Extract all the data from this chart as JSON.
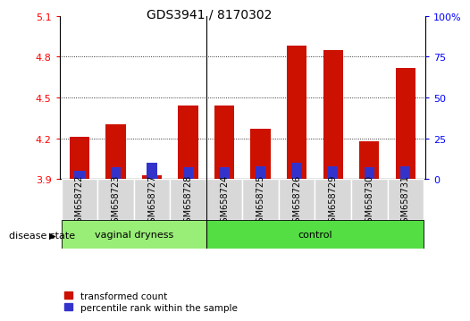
{
  "title": "GDS3941 / 8170302",
  "samples": [
    "GSM658722",
    "GSM658723",
    "GSM658727",
    "GSM658728",
    "GSM658724",
    "GSM658725",
    "GSM658726",
    "GSM658729",
    "GSM658730",
    "GSM658731"
  ],
  "transformed_count": [
    4.21,
    4.3,
    3.93,
    4.44,
    4.44,
    4.27,
    4.88,
    4.85,
    4.18,
    4.72
  ],
  "percentile_rank_values": [
    5,
    7,
    10,
    7,
    7,
    8,
    10,
    8,
    7,
    8
  ],
  "base": 3.9,
  "ylim": [
    3.9,
    5.1
  ],
  "yticks": [
    3.9,
    4.2,
    4.5,
    4.8,
    5.1
  ],
  "right_ylim": [
    0,
    100
  ],
  "right_yticks": [
    0,
    25,
    50,
    75,
    100
  ],
  "right_yticklabels": [
    "0",
    "25",
    "50",
    "75",
    "100%"
  ],
  "bar_color_red": "#cc1100",
  "bar_color_blue": "#3333cc",
  "vd_color": "#99ee77",
  "ctrl_color": "#55dd44",
  "group_label": "disease state",
  "legend_items": [
    "transformed count",
    "percentile rank within the sample"
  ],
  "bar_width": 0.55,
  "blue_bar_width": 0.28,
  "n_vd": 4,
  "n_ctrl": 6,
  "group_names": [
    "vaginal dryness",
    "control"
  ]
}
